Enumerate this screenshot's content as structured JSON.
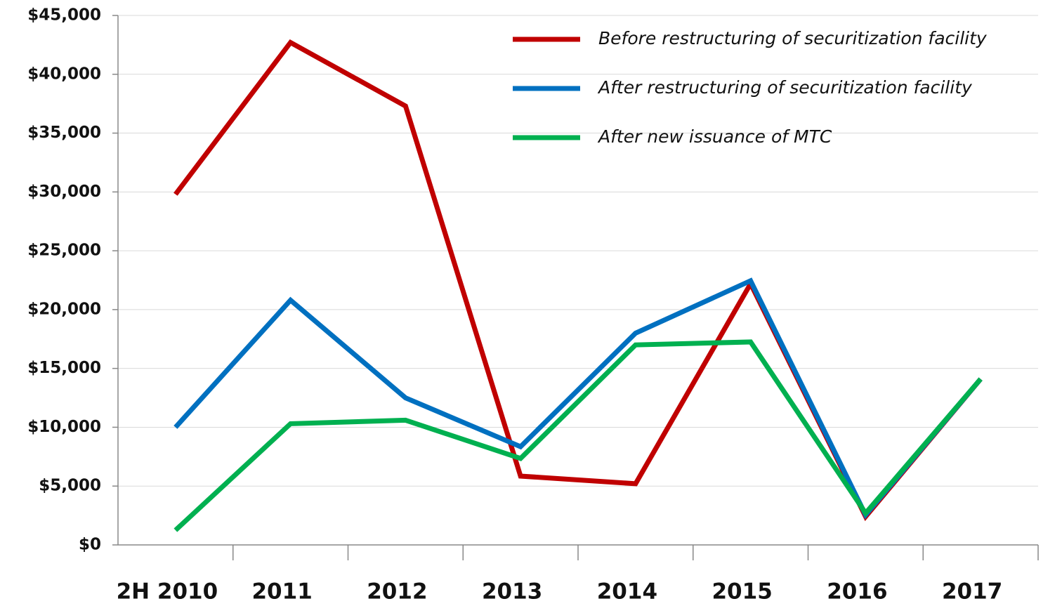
{
  "chart_data": {
    "type": "line",
    "categories": [
      "2H 2010",
      "2011",
      "2012",
      "2013",
      "2014",
      "2015",
      "2016",
      "2017"
    ],
    "series": [
      {
        "name": "Before restructuring of securitization facility",
        "color": "#c00000",
        "values": [
          29800,
          42700,
          37300,
          5850,
          5200,
          22200,
          2400,
          14100
        ]
      },
      {
        "name": "After restructuring of securitization facility",
        "color": "#0070c0",
        "values": [
          10000,
          20800,
          12500,
          8350,
          18000,
          22450,
          2550,
          14100
        ]
      },
      {
        "name": "After new issuance of MTC",
        "color": "#00b050",
        "values": [
          1250,
          10300,
          10600,
          7350,
          17000,
          17250,
          2700,
          14100
        ]
      }
    ],
    "ylim": [
      0,
      45000
    ],
    "yticks": [
      {
        "value": 0,
        "label": "$0"
      },
      {
        "value": 5000,
        "label": "$5,000"
      },
      {
        "value": 10000,
        "label": "$10,000"
      },
      {
        "value": 15000,
        "label": "$15,000"
      },
      {
        "value": 20000,
        "label": "$20,000"
      },
      {
        "value": 25000,
        "label": "$25,000"
      },
      {
        "value": 30000,
        "label": "$30,000"
      },
      {
        "value": 35000,
        "label": "$35,000"
      },
      {
        "value": 40000,
        "label": "$40,000"
      },
      {
        "value": 45000,
        "label": "$45,000"
      }
    ],
    "grid": true,
    "legend": "upper right"
  }
}
